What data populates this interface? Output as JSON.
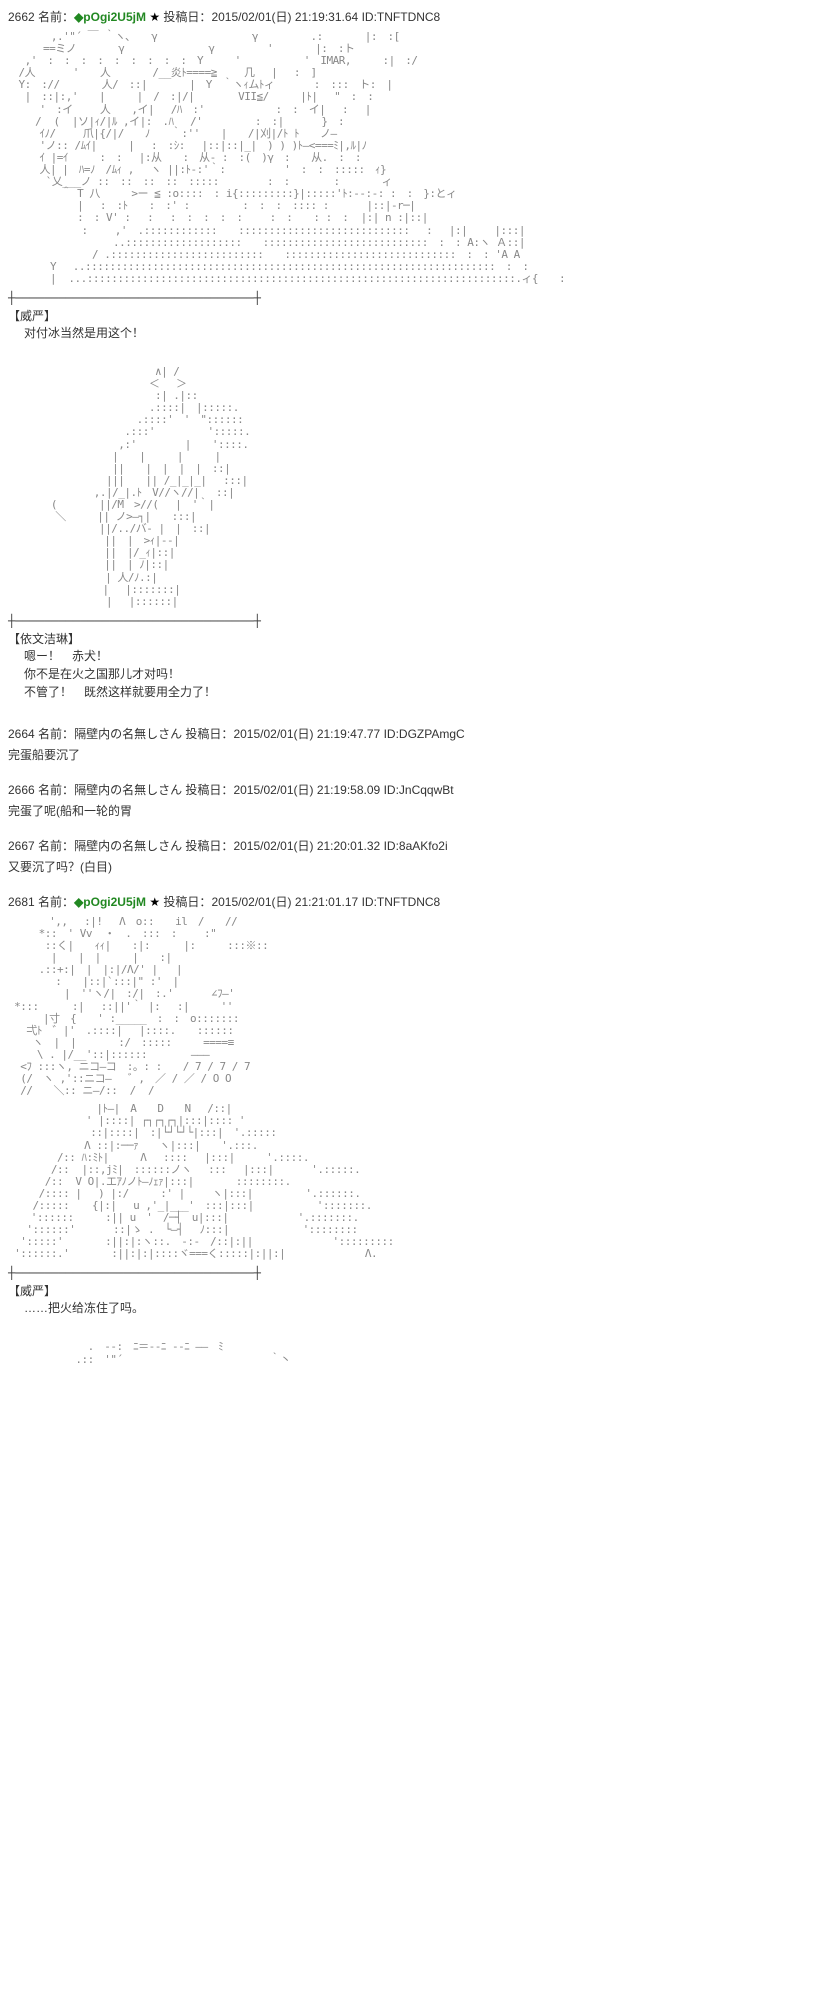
{
  "posts": [
    {
      "num": "2662",
      "name_label": "名前：",
      "name": "◆pOgi2U5jM",
      "star": "★",
      "date_label": "投稿日：",
      "date": "2015/02/01(日) 21:19:31.64",
      "id_label": "ID:",
      "id": "TNFTDNC8",
      "speaker1": "【威严】",
      "line1": "对付冰当然是用这个！",
      "speaker2": "【依文洁琳】",
      "line2a": "嗯ー！　赤犬！",
      "line2b": "你不是在火之国那儿才对吗！",
      "line2c": "不管了！　既然这样就要用全力了！"
    },
    {
      "num": "2664",
      "name_label": "名前：",
      "name": "隔壁内の名無しさん",
      "date_label": "投稿日：",
      "date": "2015/02/01(日) 21:19:47.77",
      "id_label": "ID:",
      "id": "DGZPAmgC",
      "comment": "完蛋船要沉了"
    },
    {
      "num": "2666",
      "name_label": "名前：",
      "name": "隔壁内の名無しさん",
      "date_label": "投稿日：",
      "date": "2015/02/01(日) 21:19:58.09",
      "id_label": "ID:",
      "id": "JnCqqwBt",
      "comment": "完蛋了呢(船和一轮的胃"
    },
    {
      "num": "2667",
      "name_label": "名前：",
      "name": "隔壁内の名無しさん",
      "date_label": "投稿日：",
      "date": "2015/02/01(日) 21:20:01.32",
      "id_label": "ID:",
      "id": "8aAKfo2i",
      "comment": "又要沉了吗？(白目)"
    },
    {
      "num": "2681",
      "name_label": "名前：",
      "name": "◆pOgi2U5jM",
      "star": "★",
      "date_label": "投稿日：",
      "date": "2015/02/01(日) 21:21:01.17",
      "id_label": "ID:",
      "id": "TNFTDNC8",
      "speaker1": "【威严】",
      "line1": "……把火给冻住了吗。"
    }
  ]
}
